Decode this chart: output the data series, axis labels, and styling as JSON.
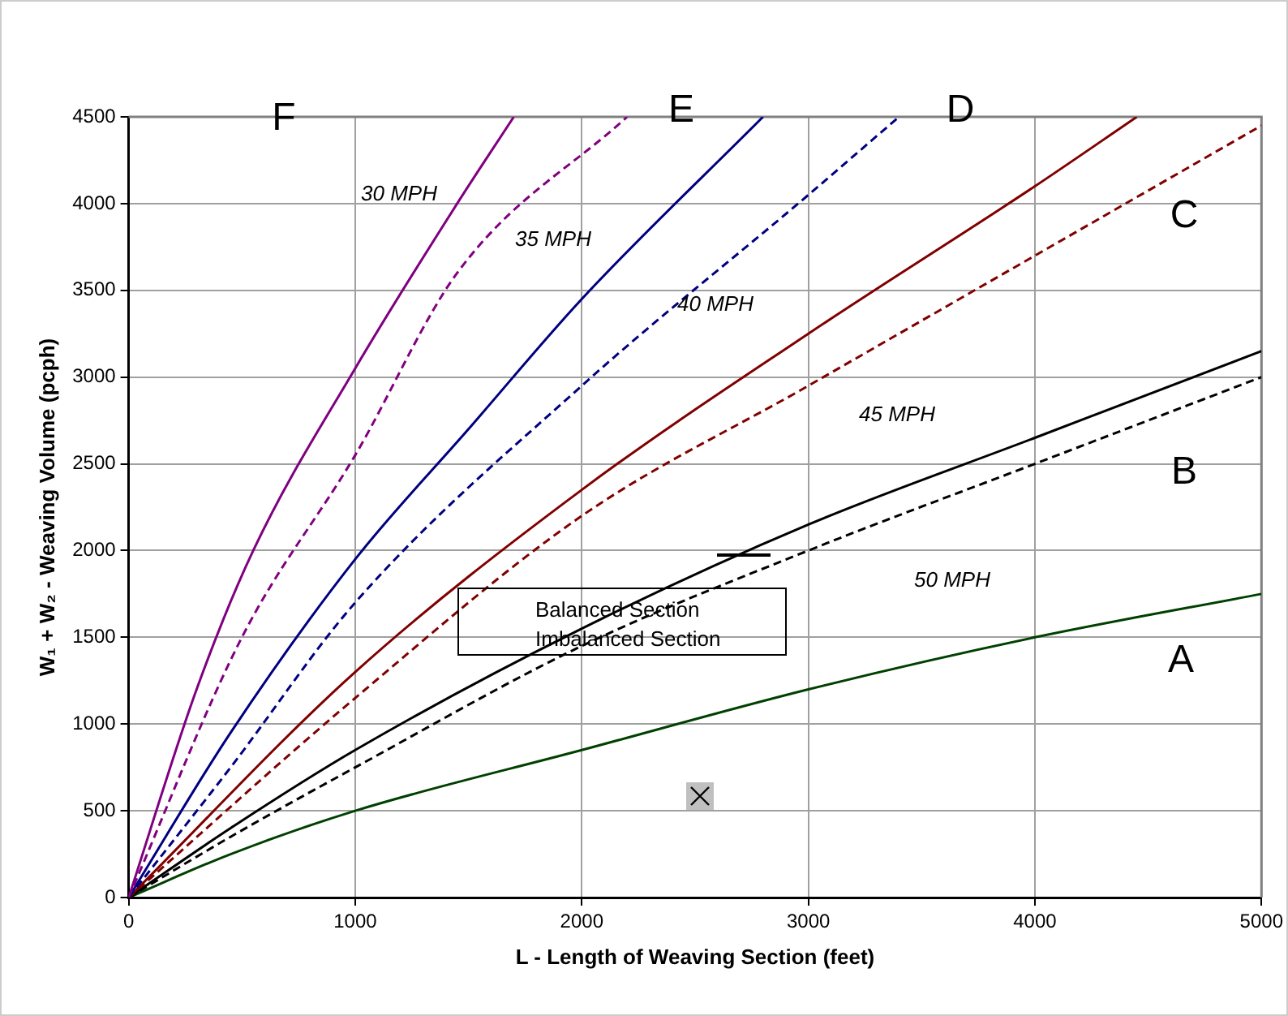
{
  "chart_data": {
    "type": "line",
    "xlabel": "L - Length of Weaving Section (feet)",
    "ylabel": "W₁ + W₂ - Weaving Volume (pcph)",
    "xlim": [
      0,
      5000
    ],
    "xticks": [
      0,
      1000,
      2000,
      3000,
      4000,
      5000
    ],
    "ylim": [
      0,
      4500
    ],
    "yticks": [
      0,
      500,
      1000,
      1500,
      2000,
      2500,
      3000,
      3500,
      4000,
      4500
    ],
    "grid": true,
    "legend": false,
    "marker": "none",
    "series": [
      {
        "color": "#800080",
        "line_style": "solid",
        "x": [
          0,
          300,
          550,
          1000,
          1450,
          1700
        ],
        "values": [
          0,
          1200,
          2000,
          3050,
          4000,
          4500
        ]
      },
      {
        "color": "#800080",
        "line_style": "dashed",
        "x": [
          0,
          500,
          1000,
          1450,
          2200
        ],
        "values": [
          0,
          1500,
          2550,
          3600,
          4500
        ]
      },
      {
        "color": "#000080",
        "line_style": "solid",
        "x": [
          0,
          450,
          1000,
          1500,
          2000,
          2800
        ],
        "values": [
          0,
          950,
          1950,
          2700,
          3450,
          4500
        ]
      },
      {
        "color": "#000080",
        "line_style": "dashed",
        "x": [
          0,
          450,
          1000,
          2000,
          3000,
          3400
        ],
        "values": [
          0,
          750,
          1700,
          2950,
          4050,
          4500
        ]
      },
      {
        "color": "#800000",
        "line_style": "solid",
        "x": [
          0,
          1000,
          2000,
          3000,
          4000,
          4450
        ],
        "values": [
          0,
          1300,
          2350,
          3250,
          4100,
          4500
        ]
      },
      {
        "color": "#800000",
        "line_style": "dashed",
        "x": [
          0,
          1000,
          2000,
          3000,
          4000,
          5000
        ],
        "values": [
          0,
          1150,
          2200,
          2950,
          3700,
          4450
        ]
      },
      {
        "color": "#000000",
        "line_style": "solid",
        "x": [
          0,
          450,
          1000,
          2000,
          3000,
          4000,
          5000
        ],
        "values": [
          0,
          400,
          850,
          1550,
          2150,
          2650,
          3150
        ]
      },
      {
        "color": "#000000",
        "line_style": "dashed",
        "x": [
          0,
          450,
          1000,
          2000,
          3000,
          4000,
          5000
        ],
        "values": [
          0,
          350,
          750,
          1450,
          2000,
          2500,
          3000
        ]
      },
      {
        "color": "#004000",
        "line_style": "solid",
        "x": [
          0,
          450,
          1000,
          2000,
          3000,
          4000,
          5000
        ],
        "values": [
          0,
          250,
          500,
          850,
          1200,
          1500,
          1750
        ]
      }
    ],
    "annotations": [
      "F",
      "E",
      "D",
      "C",
      "B",
      "A",
      "30 MPH",
      "35 MPH",
      "40 MPH",
      "45 MPH",
      "50 MPH",
      "Balanced Section",
      "Imbalanced Section"
    ]
  }
}
